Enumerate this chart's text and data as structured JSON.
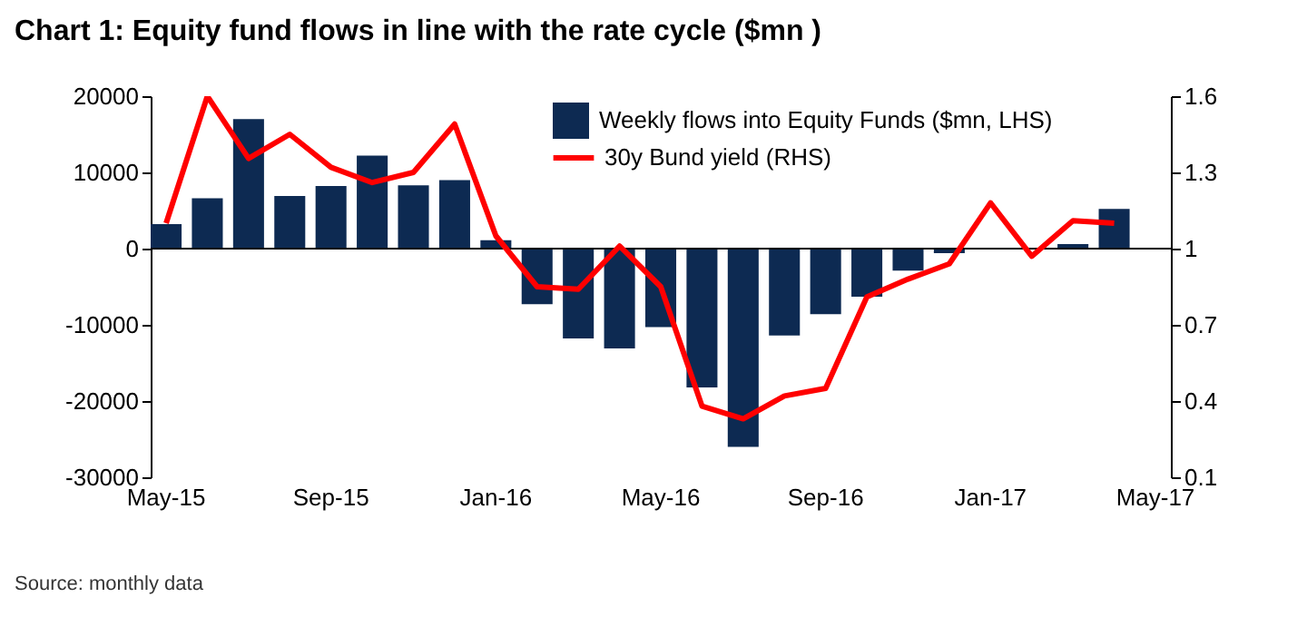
{
  "chart_data": {
    "type": "bar",
    "title": "Chart 1: Equity fund flows in line with the rate cycle ($mn )",
    "categories": [
      "May-15",
      null,
      null,
      null,
      "Sep-15",
      null,
      null,
      null,
      "Jan-16",
      null,
      null,
      null,
      "May-16",
      null,
      null,
      null,
      "Sep-16",
      null,
      null,
      null,
      "Jan-17",
      null,
      null,
      null,
      "May-17"
    ],
    "series": [
      {
        "name": "Weekly flows into Equity Funds ($mn, LHS)",
        "color": "#0d2a52",
        "values": [
          3200,
          6600,
          17000,
          6900,
          8200,
          12200,
          8300,
          9000,
          1100,
          -7300,
          -11800,
          -13100,
          -10300,
          -18200,
          -26000,
          -11400,
          -8600,
          -6300,
          -2900,
          -600,
          null,
          0,
          600,
          5200,
          null
        ]
      },
      {
        "name": "30y Bund yield (RHS)",
        "type": "line",
        "axis": "y2",
        "color": "#ff0000",
        "values": [
          1.1,
          1.6,
          1.355,
          1.45,
          1.32,
          1.26,
          1.3,
          1.49,
          1.05,
          0.85,
          0.84,
          1.01,
          0.85,
          0.38,
          0.33,
          0.42,
          0.45,
          0.81,
          0.88,
          0.94,
          1.18,
          0.97,
          1.11,
          1.1,
          null
        ]
      }
    ],
    "ylim": [
      -30000,
      20000
    ],
    "yticks": [
      -30000,
      -20000,
      -10000,
      0,
      10000,
      20000
    ],
    "y2lim": [
      0.1,
      1.6
    ],
    "y2ticks": [
      0.1,
      0.4,
      0.7,
      1,
      1.3,
      1.6
    ],
    "ref_lines": [
      {
        "axis": "y",
        "value": 0,
        "color": "#000000"
      }
    ],
    "legend": "top right",
    "grid": false,
    "annotations": [
      "Source: monthly data"
    ]
  }
}
